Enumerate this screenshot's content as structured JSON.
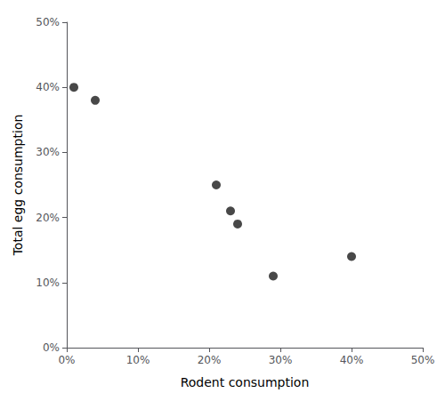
{
  "chart_data": {
    "type": "scatter",
    "x": [
      0.01,
      0.04,
      0.21,
      0.23,
      0.24,
      0.29,
      0.4
    ],
    "values": [
      0.4,
      0.38,
      0.25,
      0.21,
      0.19,
      0.11,
      0.14
    ],
    "color": "#1a1a1a",
    "xlabel": "Rodent consumption",
    "ylabel": "Total egg consumption",
    "xlim": [
      0,
      0.5
    ],
    "ylim": [
      0,
      0.5
    ],
    "xticks": [
      {
        "value": 0.0,
        "label": "0%"
      },
      {
        "value": 0.1,
        "label": "10%"
      },
      {
        "value": 0.2,
        "label": "20%"
      },
      {
        "value": 0.3,
        "label": "30%"
      },
      {
        "value": 0.4,
        "label": "40%"
      },
      {
        "value": 0.5,
        "label": "50%"
      }
    ],
    "yticks": [
      {
        "value": 0.0,
        "label": "0%"
      },
      {
        "value": 0.1,
        "label": "10%"
      },
      {
        "value": 0.2,
        "label": "20%"
      },
      {
        "value": 0.3,
        "label": "30%"
      },
      {
        "value": 0.4,
        "label": "40%"
      },
      {
        "value": 0.5,
        "label": "50%"
      }
    ],
    "grid": false
  }
}
